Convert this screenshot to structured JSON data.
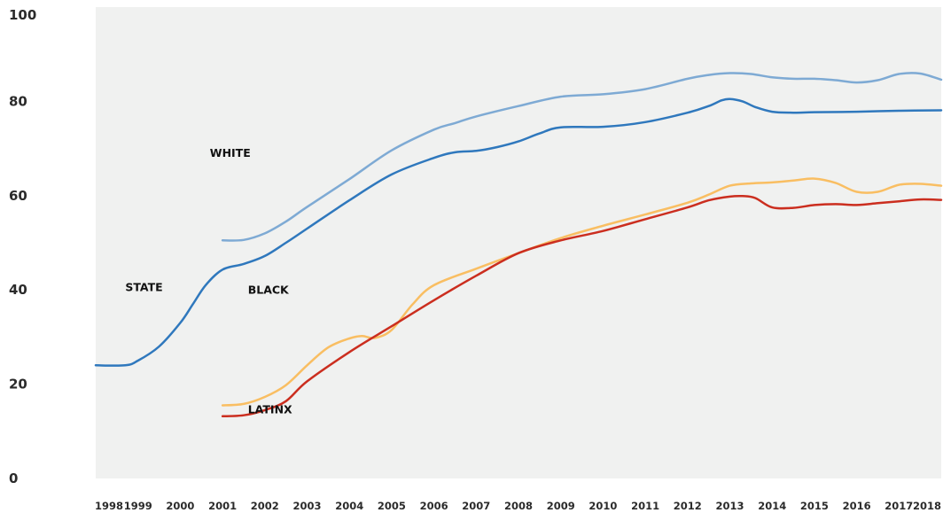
{
  "chart_data": {
    "type": "line",
    "title": "",
    "xlabel": "",
    "ylabel": "",
    "ylim": [
      0,
      100
    ],
    "xlim": [
      1998,
      2018
    ],
    "yticks": [
      0,
      20,
      40,
      60,
      80,
      100
    ],
    "xticks": [
      "1998",
      "1999",
      "2000",
      "2001",
      "2002",
      "2003",
      "2004",
      "2005",
      "2006",
      "2007",
      "2008",
      "2009",
      "2010",
      "2011",
      "2012",
      "2013",
      "2014",
      "2015",
      "2016",
      "2017",
      "2018"
    ],
    "grid": false,
    "legend": "direct-labels",
    "series": [
      {
        "name": "STATE",
        "color": "#2f78bd",
        "x": [
          1998,
          1998.7,
          1999,
          1999.5,
          2000,
          2000.3,
          2000.6,
          2001,
          2001.5,
          2002,
          2002.5,
          2003,
          2004,
          2005,
          2006,
          2006.5,
          2007,
          2007.5,
          2008,
          2008.5,
          2009,
          2010,
          2011,
          2012,
          2012.5,
          2012.8,
          2013,
          2013.3,
          2013.6,
          2014,
          2014.5,
          2015,
          2016,
          2017,
          2018
        ],
        "values": [
          24,
          24,
          25,
          28,
          33,
          37,
          41,
          44.3,
          45.5,
          47.2,
          50,
          53,
          59,
          64.5,
          68,
          69.2,
          69.5,
          70.3,
          71.5,
          73.2,
          74.5,
          74.6,
          75.6,
          77.6,
          79,
          80.2,
          80.5,
          80,
          78.8,
          77.8,
          77.6,
          77.7,
          77.8,
          78,
          78.1
        ]
      },
      {
        "name": "WHITE",
        "color": "#7eaad4",
        "x": [
          2001,
          2001.5,
          2002,
          2002.5,
          2003,
          2004,
          2005,
          2006,
          2006.5,
          2007,
          2008,
          2009,
          2010,
          2011,
          2012,
          2012.5,
          2013,
          2013.5,
          2014,
          2014.5,
          2015,
          2015.5,
          2016,
          2016.5,
          2017,
          2017.5,
          2018
        ],
        "values": [
          50.5,
          50.6,
          52,
          54.5,
          57.6,
          63.5,
          69.6,
          74,
          75.4,
          76.8,
          79,
          81,
          81.5,
          82.6,
          84.8,
          85.6,
          86,
          85.8,
          85.1,
          84.8,
          84.8,
          84.5,
          84,
          84.5,
          85.8,
          85.9,
          84.6
        ]
      },
      {
        "name": "BLACK",
        "color": "#f9be62",
        "x": [
          2001,
          2001.5,
          2002,
          2002.5,
          2003,
          2003.5,
          2004,
          2004.3,
          2004.6,
          2005,
          2005.5,
          2006,
          2007,
          2008,
          2009,
          2010,
          2011,
          2012,
          2012.5,
          2013,
          2013.5,
          2014,
          2014.5,
          2015,
          2015.5,
          2016,
          2016.5,
          2017,
          2017.5,
          2018
        ],
        "values": [
          15.5,
          15.8,
          17.3,
          19.8,
          24,
          27.8,
          29.7,
          30.2,
          29.8,
          31.5,
          37,
          41,
          44.5,
          47.8,
          51,
          53.6,
          56,
          58.5,
          60.2,
          62.1,
          62.6,
          62.8,
          63.2,
          63.6,
          62.7,
          60.8,
          60.8,
          62.3,
          62.5,
          62.1
        ]
      },
      {
        "name": "LATINX",
        "color": "#cb2e1f",
        "x": [
          2001,
          2001.5,
          2002,
          2002.5,
          2003,
          2004,
          2005,
          2006,
          2007,
          2008,
          2009,
          2010,
          2011,
          2012,
          2012.5,
          2013,
          2013.3,
          2013.6,
          2014,
          2014.5,
          2015,
          2015.5,
          2016,
          2016.5,
          2017,
          2017.5,
          2018
        ],
        "values": [
          13.2,
          13.4,
          14.5,
          16.4,
          20.6,
          26.8,
          32.3,
          37.8,
          43,
          47.8,
          50.5,
          52.5,
          55,
          57.5,
          59,
          59.8,
          59.9,
          59.5,
          57.5,
          57.4,
          58,
          58.2,
          58,
          58.4,
          58.8,
          59.2,
          59.1
        ]
      }
    ],
    "annotations": [
      {
        "text": "WHITE",
        "x": 2000.7,
        "y": 68.2
      },
      {
        "text": "STATE",
        "x": 1998.7,
        "y": 39.8
      },
      {
        "text": "BLACK",
        "x": 2001.6,
        "y": 39.2
      },
      {
        "text": "LATINX",
        "x": 2001.6,
        "y": 13.8
      }
    ],
    "colors": {
      "background": "#ffffff",
      "plot_area": "#f0f1f0",
      "tick_text": "#2b2b2b",
      "label_text": "#111111"
    }
  }
}
